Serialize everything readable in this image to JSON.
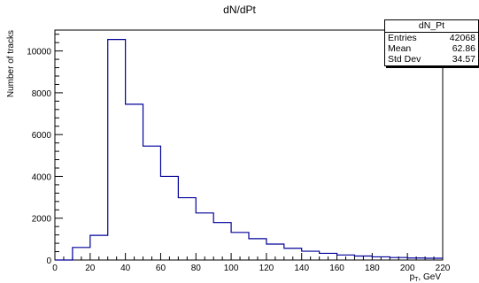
{
  "chart_data": {
    "type": "bar",
    "title": "dN/dPt",
    "xlabel": "p_T, GeV",
    "xlabel_main": "p",
    "xlabel_sub": "T",
    "xlabel_tail": ", GeV",
    "ylabel": "Number of tracks",
    "xlim": [
      0,
      220
    ],
    "ylim": [
      0,
      11000
    ],
    "bin_edges": [
      0,
      10,
      20,
      30,
      40,
      50,
      60,
      70,
      80,
      90,
      100,
      110,
      120,
      130,
      140,
      150,
      160,
      170,
      180,
      190,
      200,
      210,
      220
    ],
    "values": [
      0,
      600,
      1180,
      10550,
      7450,
      5450,
      4000,
      2980,
      2250,
      1790,
      1320,
      1020,
      760,
      560,
      420,
      320,
      240,
      190,
      150,
      120,
      95,
      85
    ],
    "x_ticks": [
      0,
      20,
      40,
      60,
      80,
      100,
      120,
      140,
      160,
      180,
      200,
      220
    ],
    "y_ticks": [
      0,
      2000,
      4000,
      6000,
      8000,
      10000
    ],
    "line_color": "#000099",
    "grid": false,
    "stats_box": {
      "title": "dN_Pt",
      "entries_label": "Entries",
      "entries_value": "42068",
      "mean_label": "Mean",
      "mean_value": "62.86",
      "std_label": "Std Dev",
      "std_value": "34.57"
    }
  }
}
